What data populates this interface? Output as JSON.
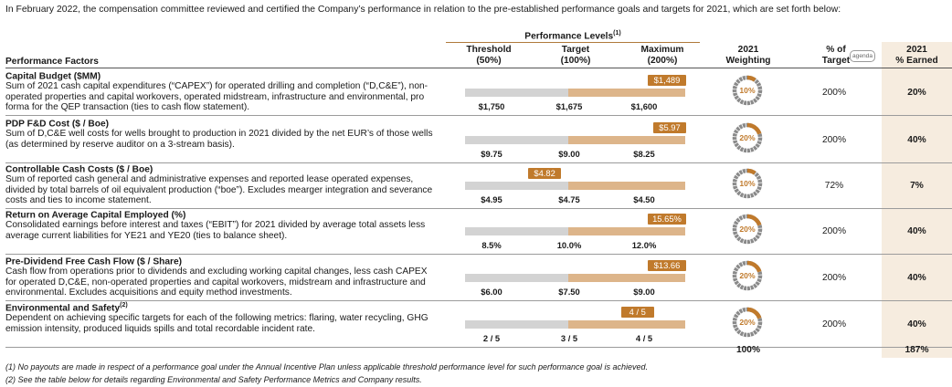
{
  "intro": "In February 2022, the compensation committee reviewed and certified the Company’s performance in relation to the pre-established performance goals and targets for 2021, which are set forth below:",
  "headers": {
    "performance_factors": "Performance Factors",
    "performance_levels": "Performance Levels",
    "performance_levels_sup": "(1)",
    "threshold": "Threshold",
    "threshold_pct": "(50%)",
    "target": "Target",
    "target_pct": "(100%)",
    "maximum": "Maximum",
    "maximum_pct": "(200%)",
    "weighting": "2021",
    "weighting2": "Weighting",
    "pct_of": "% of",
    "pct_target": "Target",
    "earned": "2021",
    "earned2": "% Earned",
    "tooltip": "agenda"
  },
  "rows": [
    {
      "title": "Capital Budget ($MM)",
      "title_sup": "",
      "desc": "Sum of 2021 cash capital expenditures (“CAPEX”) for operated drilling and completion (“D,C&E”), non-operated properties and capital workovers, operated midstream, infrastructure and environmental, pro forma for the QEP transaction (ties to cash flow statement).",
      "threshold": "$1,750",
      "target": "$1,675",
      "maximum": "$1,600",
      "actual": "$1,489",
      "actual_level": 1.0,
      "weighting": "10%",
      "weighting_value": 10,
      "pct_target": "200%",
      "earned": "20%"
    },
    {
      "title": "PDP F&D Cost ($ / Boe)",
      "title_sup": "",
      "desc": "Sum of D,C&E well costs for wells brought to production in 2021 divided by the net EUR’s of those wells (as determined by reserve auditor on a 3-stream basis).",
      "threshold": "$9.75",
      "target": "$9.00",
      "maximum": "$8.25",
      "actual": "$5.97",
      "actual_level": 1.0,
      "weighting": "20%",
      "weighting_value": 20,
      "pct_target": "200%",
      "earned": "40%"
    },
    {
      "title": "Controllable Cash Costs ($ / Boe)",
      "title_sup": "",
      "desc": "Sum of reported cash general and administrative expenses and reported lease operated expenses, divided by total barrels of oil equivalent production (“boe”). Excludes mearger integration and severance costs and ties to income statement.",
      "threshold": "$4.95",
      "target": "$4.75",
      "maximum": "$4.50",
      "actual": "$4.82",
      "actual_level": 0.36,
      "weighting": "10%",
      "weighting_value": 10,
      "pct_target": "72%",
      "earned": "7%"
    },
    {
      "title": "Return on Average Capital Employed (%)",
      "title_sup": "",
      "desc": "Consolidated earnings before interest and taxes (“EBIT”) for 2021 divided by average total assets less average current liabilities for YE21 and YE20 (ties to balance sheet).",
      "threshold": "8.5%",
      "target": "10.0%",
      "maximum": "12.0%",
      "actual": "15.65%",
      "actual_level": 1.0,
      "weighting": "20%",
      "weighting_value": 20,
      "pct_target": "200%",
      "earned": "40%"
    },
    {
      "title": "Pre-Dividend Free Cash Flow ($ / Share)",
      "title_sup": "",
      "desc": "Cash flow from operations prior to dividends and excluding working capital changes, less cash CAPEX for operated D,C&E, non-operated properties and capital workovers, midstream and infrastructure and environmental. Excludes acquisitions and equity method investments.",
      "threshold": "$6.00",
      "target": "$7.50",
      "maximum": "$9.00",
      "actual": "$13.66",
      "actual_level": 1.0,
      "weighting": "20%",
      "weighting_value": 20,
      "pct_target": "200%",
      "earned": "40%"
    },
    {
      "title": "Environmental and Safety",
      "title_sup": "(2)",
      "desc": "Dependent on achieving specific targets for each of the following metrics: flaring, water recycling, GHG emission intensity, produced liquids spills and total recordable incident rate.",
      "threshold": "2 / 5",
      "target": "3 / 5",
      "maximum": "4 / 5",
      "actual": "4 / 5",
      "actual_level": 0.78,
      "weighting": "20%",
      "weighting_value": 20,
      "pct_target": "200%",
      "earned": "40%"
    }
  ],
  "totals": {
    "weighting": "100%",
    "earned": "187%"
  },
  "footnotes": [
    "(1)   No payouts are made in respect of a performance goal under the Annual Incentive Plan unless applicable threshold performance level for such performance goal is achieved.",
    "(2)   See the table below for details regarding Environmental and Safety Performance Metrics and Company results."
  ],
  "colors": {
    "accent": "#c07a2c",
    "bar_grey": "#d3d3d3",
    "bar_tan": "#ddb58a",
    "earned_shade": "#f6ecdf"
  }
}
